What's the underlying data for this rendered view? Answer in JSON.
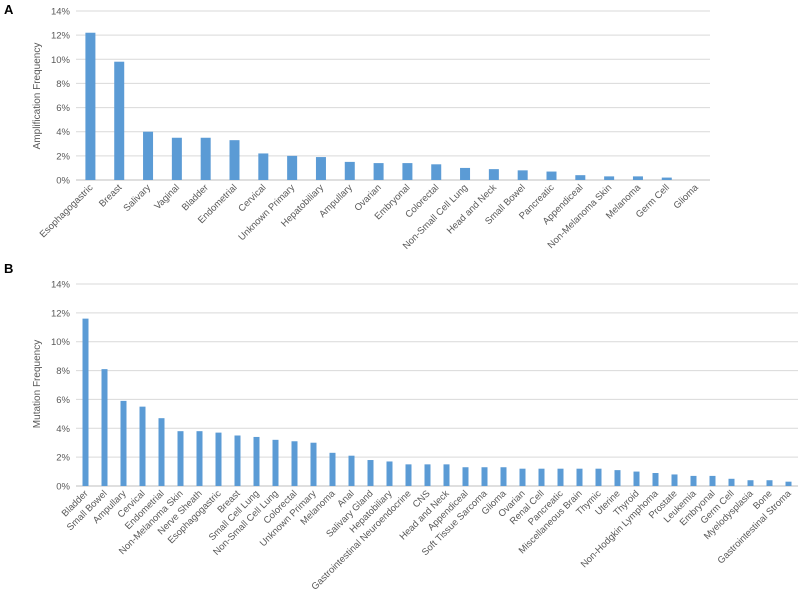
{
  "colors": {
    "bar": "#5b9bd5",
    "grid": "#d9d9d9",
    "axis": "#bfbfbf",
    "text": "#595959"
  },
  "chart_data": [
    {
      "panel": "A",
      "type": "bar",
      "ylabel": "Amplification Frequency",
      "ylim": [
        0,
        14
      ],
      "yticks": [
        0,
        2,
        4,
        6,
        8,
        10,
        12,
        14
      ],
      "ytick_labels": [
        "0%",
        "2%",
        "4%",
        "6%",
        "8%",
        "10%",
        "12%",
        "14%"
      ],
      "grid": true,
      "categories": [
        "Esophagogastric",
        "Breast",
        "Salivary",
        "Vaginal",
        "Bladder",
        "Endometrial",
        "Cervical",
        "Unknown Primary",
        "Hepatobiliary",
        "Ampullary",
        "Ovarian",
        "Embryonal",
        "Colorectal",
        "Non-Small Cell Lung",
        "Head and Neck",
        "Small Bowel",
        "Pancreatic",
        "Appendiceal",
        "Non-Melanoma Skin",
        "Melanoma",
        "Germ Cell",
        "Glioma"
      ],
      "values": [
        12.2,
        9.8,
        4.0,
        3.5,
        3.5,
        3.3,
        2.2,
        2.0,
        1.9,
        1.5,
        1.4,
        1.4,
        1.3,
        1.0,
        0.9,
        0.8,
        0.7,
        0.4,
        0.3,
        0.3,
        0.2,
        0.0
      ]
    },
    {
      "panel": "B",
      "type": "bar",
      "ylabel": "Mutation Frequency",
      "ylim": [
        0,
        14
      ],
      "yticks": [
        0,
        2,
        4,
        6,
        8,
        10,
        12,
        14
      ],
      "ytick_labels": [
        "0%",
        "2%",
        "4%",
        "6%",
        "8%",
        "10%",
        "12%",
        "14%"
      ],
      "grid": true,
      "categories": [
        "Bladder",
        "Small Bowel",
        "Ampullary",
        "Cervical",
        "Endometrial",
        "Non-Melanoma Skin",
        "Nerve Sheath",
        "Esophagogastric",
        "Breast",
        "Small Cell Lung",
        "Non-Small Cell Lung",
        "Colorectal",
        "Unknown Primary",
        "Melanoma",
        "Anal",
        "Salivary Gland",
        "Hepatobiliary",
        "Gastrointestinal Neuroendocrine",
        "CNS",
        "Head and Neck",
        "Appendiceal",
        "Soft Tissue Sarcoma",
        "Glioma",
        "Ovarian",
        "Renal Cell",
        "Pancreatic",
        "Miscellaneous Brain",
        "Thymic",
        "Uterine",
        "Thyroid",
        "Non-Hodgkin Lymphoma",
        "Prostate",
        "Leukemia",
        "Embryonal",
        "Germ Cell",
        "Myelodysplasia",
        "Bone",
        "Gastrointestinal Stroma"
      ],
      "values": [
        11.6,
        8.1,
        5.9,
        5.5,
        4.7,
        3.8,
        3.8,
        3.7,
        3.5,
        3.4,
        3.2,
        3.1,
        3.0,
        2.3,
        2.1,
        1.8,
        1.7,
        1.5,
        1.5,
        1.5,
        1.3,
        1.3,
        1.3,
        1.2,
        1.2,
        1.2,
        1.2,
        1.2,
        1.1,
        1.0,
        0.9,
        0.8,
        0.7,
        0.7,
        0.5,
        0.4,
        0.4,
        0.3
      ]
    }
  ]
}
